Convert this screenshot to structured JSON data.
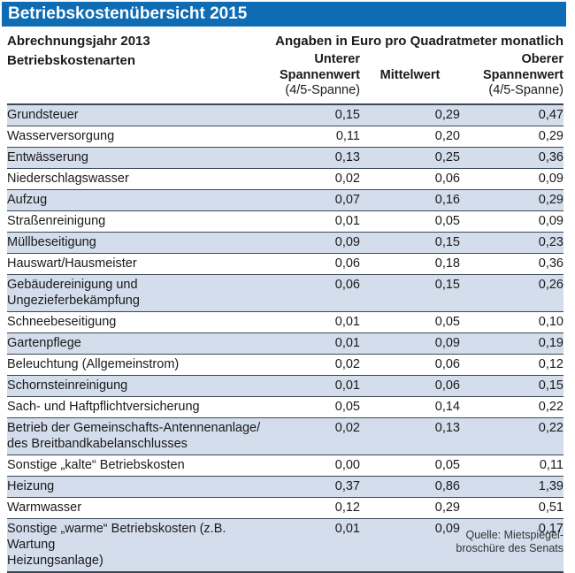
{
  "title": "Betriebskostenübersicht 2015",
  "header": {
    "left_line1": "Abrechnungsjahr 2013",
    "left_line2": "Betriebskostenarten",
    "units_note": "Angaben in Euro pro Quadratmeter monatlich",
    "columns": {
      "lower": {
        "l1": "Unterer",
        "l2": "Spannenwert",
        "l3": "(4/5-Spanne)"
      },
      "mean": {
        "l1": "Mittelwert"
      },
      "upper": {
        "l1": "Oberer",
        "l2": "Spannenwert",
        "l3": "(4/5-Spanne)"
      }
    }
  },
  "colors": {
    "title_bar_blue": "#0d6cb3",
    "row_stripe_blue": "#d3ddec",
    "separator_line": "#3d4855"
  },
  "table": {
    "rows": [
      {
        "lines": [
          "Grundsteuer"
        ],
        "lower": "0,15",
        "mean": "0,29",
        "upper": "0,47"
      },
      {
        "lines": [
          "Wasserversorgung"
        ],
        "lower": "0,11",
        "mean": "0,20",
        "upper": "0,29"
      },
      {
        "lines": [
          "Entwässerung"
        ],
        "lower": "0,13",
        "mean": "0,25",
        "upper": "0,36"
      },
      {
        "lines": [
          "Niederschlagswasser"
        ],
        "lower": "0,02",
        "mean": "0,06",
        "upper": "0,09"
      },
      {
        "lines": [
          "Aufzug"
        ],
        "lower": "0,07",
        "mean": "0,16",
        "upper": "0,29"
      },
      {
        "lines": [
          "Straßenreinigung"
        ],
        "lower": "0,01",
        "mean": "0,05",
        "upper": "0,09"
      },
      {
        "lines": [
          "Müllbeseitigung"
        ],
        "lower": "0,09",
        "mean": "0,15",
        "upper": "0,23"
      },
      {
        "lines": [
          "Hauswart/Hausmeister"
        ],
        "lower": "0,06",
        "mean": "0,18",
        "upper": "0,36"
      },
      {
        "lines": [
          "Gebäudereinigung und Ungezieferbekämpfung"
        ],
        "lower": "0,06",
        "mean": "0,15",
        "upper": "0,26"
      },
      {
        "lines": [
          "Schneebeseitigung"
        ],
        "lower": "0,01",
        "mean": "0,05",
        "upper": "0,10"
      },
      {
        "lines": [
          "Gartenpflege"
        ],
        "lower": "0,01",
        "mean": "0,09",
        "upper": "0,19"
      },
      {
        "lines": [
          "Beleuchtung (Allgemeinstrom)"
        ],
        "lower": "0,02",
        "mean": "0,06",
        "upper": "0,12"
      },
      {
        "lines": [
          "Schornsteinreinigung"
        ],
        "lower": "0,01",
        "mean": "0,06",
        "upper": "0,15"
      },
      {
        "lines": [
          "Sach- und Haftpflichtversicherung"
        ],
        "lower": "0,05",
        "mean": "0,14",
        "upper": "0,22"
      },
      {
        "lines": [
          "Betrieb der Gemeinschafts-Antennenanlage/",
          "des Breitbandkabelanschlusses"
        ],
        "lower": "0,02",
        "mean": "0,13",
        "upper": "0,22"
      },
      {
        "lines": [
          "Sonstige „kalte“ Betriebskosten"
        ],
        "lower": "0,00",
        "mean": "0,05",
        "upper": "0,11"
      },
      {
        "lines": [
          "Heizung"
        ],
        "lower": "0,37",
        "mean": "0,86",
        "upper": "1,39"
      },
      {
        "lines": [
          "Warmwasser"
        ],
        "lower": "0,12",
        "mean": "0,29",
        "upper": "0,51"
      },
      {
        "lines": [
          "Sonstige „warme“ Betriebskosten (z.B. Wartung",
          "Heizungsanlage)"
        ],
        "lower": "0,01",
        "mean": "0,09",
        "upper": "0,17"
      }
    ]
  },
  "footer": {
    "source_line1": "Quelle: Mietspiegel-",
    "source_line2": "broschüre des Senats"
  }
}
